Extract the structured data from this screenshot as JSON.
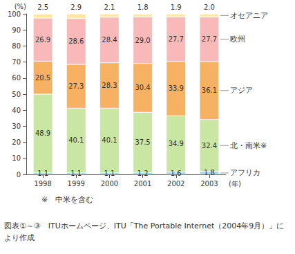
{
  "chart_data": {
    "type": "bar",
    "stacked": true,
    "data_labels": true,
    "grid": false,
    "y_label": "(%)",
    "x_label": "(年)",
    "categories": [
      "1998",
      "1999",
      "2000",
      "2001",
      "2002",
      "2003"
    ],
    "ylim": [
      0,
      100
    ],
    "yticks": [
      0,
      10,
      20,
      30,
      40,
      50,
      60,
      70,
      80,
      90,
      100
    ],
    "series": [
      {
        "name": "アフリカ",
        "color": "#9fd6ee",
        "values": [
          1.1,
          1.1,
          1.1,
          1.2,
          1.6,
          1.8
        ],
        "value_labels": [
          "1.1",
          "1.1",
          "1.1",
          "1.2",
          "1.6",
          "1.8"
        ]
      },
      {
        "name": "北・南米※",
        "color": "#c9e6a2",
        "values": [
          48.9,
          40.1,
          40.1,
          37.5,
          34.9,
          32.4
        ],
        "value_labels": [
          "48.9",
          "40.1",
          "40.1",
          "37.5",
          "34.9",
          "32.4"
        ]
      },
      {
        "name": "アジア",
        "color": "#f6b163",
        "values": [
          20.5,
          27.3,
          28.3,
          30.4,
          33.9,
          36.1
        ],
        "value_labels": [
          "20.5",
          "27.3",
          "28.3",
          "30.4",
          "33.9",
          "36.1"
        ]
      },
      {
        "name": "欧州",
        "color": "#f9b9b9",
        "values": [
          26.9,
          28.6,
          28.4,
          29.0,
          27.7,
          27.7
        ],
        "value_labels": [
          "26.9",
          "28.6",
          "28.4",
          "29.0",
          "27.7",
          "27.7"
        ]
      },
      {
        "name": "オセアニア",
        "color": "#ffe8a0",
        "values": [
          2.5,
          2.9,
          2.1,
          1.8,
          1.9,
          2.0
        ],
        "value_labels": [
          "2.5",
          "2.9",
          "2.1",
          "1.8",
          "1.9",
          "2.0"
        ]
      }
    ],
    "annotations": [
      "※　中米を含む",
      "図表①～③　ITUホームページ、ITU「The Portable Internet（2004年9月）」により作成"
    ]
  }
}
